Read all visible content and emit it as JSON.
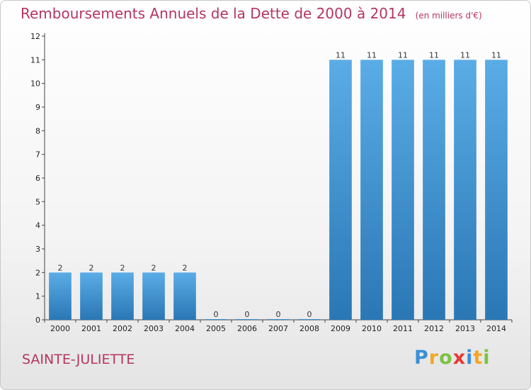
{
  "header": {
    "title": "Remboursements Annuels de la Dette de 2000 à 2014",
    "unit": "(en milliers d'€)"
  },
  "footer": {
    "commune": "SAINTE-JULIETTE",
    "logo_letters": [
      "P",
      "r",
      "o",
      "x",
      "i",
      "t",
      "i"
    ],
    "logo_colors": [
      "#3a8fd6",
      "#f5a623",
      "#7cc242",
      "#e53935",
      "#3a8fd6",
      "#f5a623",
      "#7cc242"
    ]
  },
  "chart_data": {
    "type": "bar",
    "categories": [
      "2000",
      "2001",
      "2002",
      "2003",
      "2004",
      "2005",
      "2006",
      "2007",
      "2008",
      "2009",
      "2010",
      "2011",
      "2012",
      "2013",
      "2014"
    ],
    "values": [
      2,
      2,
      2,
      2,
      2,
      0,
      0,
      0,
      0,
      11,
      11,
      11,
      11,
      11,
      11
    ],
    "value_labels": [
      "2",
      "2",
      "2",
      "2",
      "2",
      "0",
      "0",
      "0",
      "0",
      "11",
      "11",
      "11",
      "11",
      "11",
      "11"
    ],
    "ylim": [
      0,
      12
    ],
    "yticks": [
      "0",
      "1",
      "2",
      "3",
      "4",
      "5",
      "6",
      "7",
      "8",
      "9",
      "10",
      "11",
      "12"
    ],
    "grid": false,
    "legend": "none",
    "bar_color_light": "#5aace6",
    "bar_color_dark": "#2a77b5"
  }
}
